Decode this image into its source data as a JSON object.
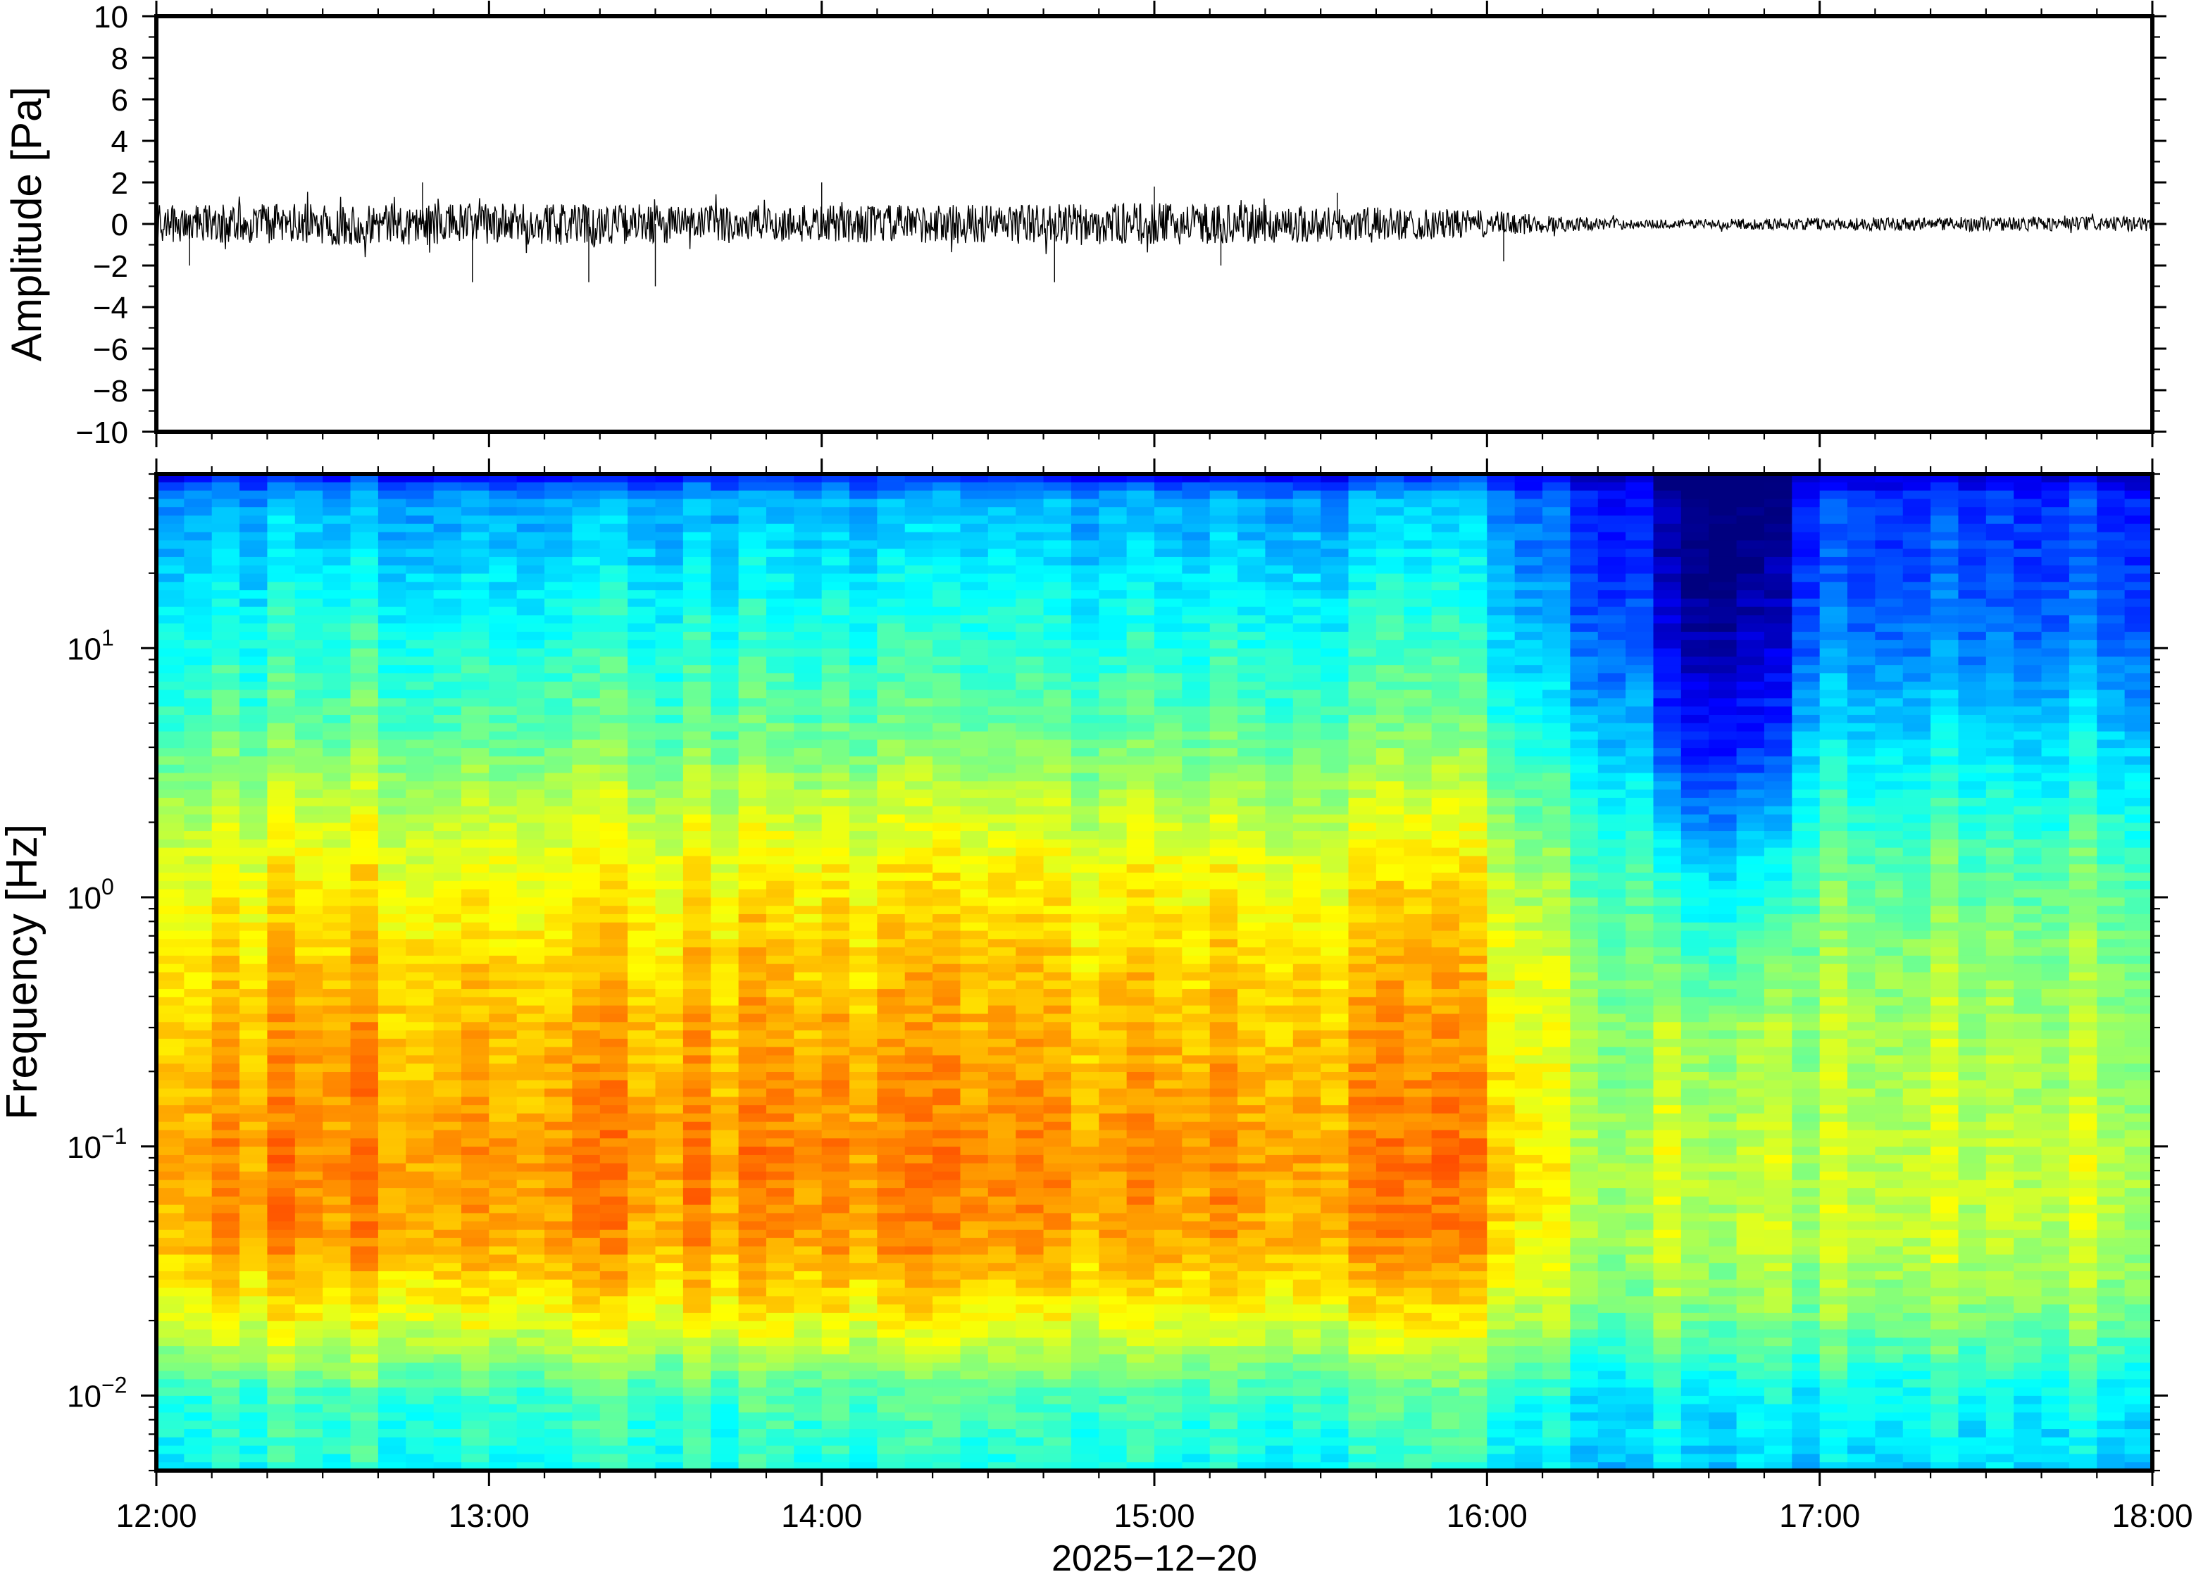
{
  "chart_data": [
    {
      "type": "line",
      "panel": "waveform",
      "ylabel": "Amplitude [Pa]",
      "ylim": [
        -10,
        10
      ],
      "yticks": [
        10,
        8,
        6,
        4,
        2,
        0,
        -2,
        -4,
        -6,
        -8,
        -10
      ],
      "ytick_labels": [
        "10",
        "8",
        "6",
        "4",
        "2",
        "0",
        "−2",
        "−4",
        "−6",
        "−8",
        "−10"
      ],
      "xlim": [
        "12:00",
        "18:00"
      ],
      "series": [
        {
          "envelope_hours": [
            12.0,
            12.5,
            13.0,
            13.5,
            14.0,
            14.5,
            15.0,
            15.5,
            16.0,
            16.25,
            16.5,
            17.0,
            17.5,
            18.0
          ],
          "envelope_pa": [
            0.9,
            1.0,
            1.0,
            0.95,
            0.9,
            0.95,
            1.0,
            0.9,
            0.65,
            0.35,
            0.2,
            0.3,
            0.35,
            0.35
          ],
          "spike_hours": [
            12.1,
            12.8,
            12.95,
            13.3,
            13.5,
            14.0,
            14.7,
            15.0,
            15.2,
            15.55,
            16.05
          ],
          "spike_pa": [
            -2.0,
            2.0,
            -2.8,
            -2.8,
            -3.0,
            2.0,
            -2.8,
            1.8,
            -2.0,
            1.5,
            -1.8
          ]
        }
      ],
      "line_color": "#000000"
    },
    {
      "type": "heatmap",
      "panel": "spectrogram",
      "ylabel": "Frequency [Hz]",
      "yscale": "log",
      "ylim": [
        0.005,
        50
      ],
      "yticks": [
        0.01,
        0.1,
        1,
        10
      ],
      "ytick_labels": [
        {
          "base": "10",
          "exp": "−2"
        },
        {
          "base": "10",
          "exp": "−1"
        },
        {
          "base": "10",
          "exp": "0"
        },
        {
          "base": "10",
          "exp": "1"
        }
      ],
      "xlabel": "2025−12−20",
      "xticks": [
        "12:00",
        "13:00",
        "14:00",
        "15:00",
        "16:00",
        "17:00",
        "18:00"
      ],
      "xtick_hours": [
        12,
        13,
        14,
        15,
        16,
        17,
        18
      ],
      "colormap": "jet",
      "colormap_stops": [
        "#00007f",
        "#0000ff",
        "#007fff",
        "#00ffff",
        "#7fff7f",
        "#ffff00",
        "#ff7f00",
        "#ff0000",
        "#7f0000"
      ],
      "time_bin_minutes": 5,
      "relative_power_profile": {
        "log10_freq": [
          -2.3,
          -2.0,
          -1.7,
          -1.4,
          -1.1,
          -0.8,
          -0.5,
          -0.2,
          0.1,
          0.4,
          0.7,
          1.0,
          1.3,
          1.6,
          1.7
        ],
        "level_1200_1600": [
          0.4,
          0.45,
          0.62,
          0.72,
          0.74,
          0.72,
          0.7,
          0.67,
          0.63,
          0.56,
          0.47,
          0.42,
          0.36,
          0.3,
          0.14
        ],
        "level_1600_1800": [
          0.34,
          0.38,
          0.5,
          0.56,
          0.57,
          0.55,
          0.54,
          0.51,
          0.47,
          0.4,
          0.33,
          0.25,
          0.2,
          0.18,
          0.08
        ]
      },
      "quiet_window_hours": [
        16.45,
        16.85
      ]
    }
  ]
}
